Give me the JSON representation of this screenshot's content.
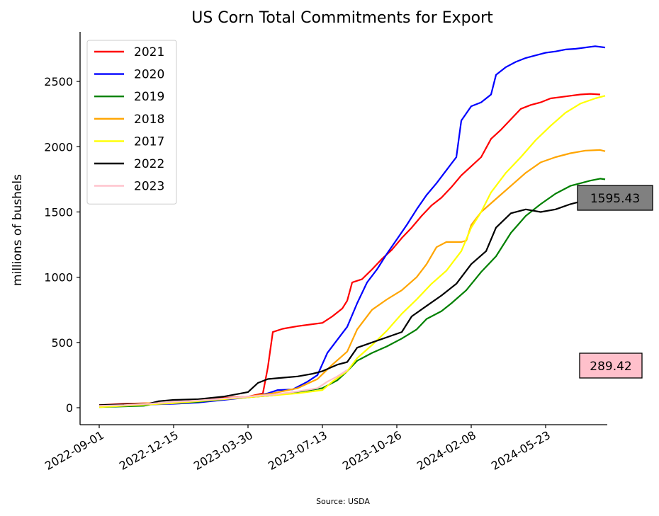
{
  "chart_data": {
    "type": "line",
    "title": "US Corn Total Commitments for Export",
    "ylabel": "millions of bushels",
    "xlabel": "",
    "source": "Source: USDA",
    "ylim": [
      -130,
      2880
    ],
    "xlim": [
      "2022-08-05",
      "2024-08-18"
    ],
    "y_ticks": [
      0,
      500,
      1000,
      1500,
      2000,
      2500
    ],
    "x_ticks": [
      "2022-09-01",
      "2022-12-15",
      "2023-03-30",
      "2023-07-13",
      "2023-10-26",
      "2024-02-08",
      "2024-05-23"
    ],
    "legend_position": "top-left",
    "grid": false,
    "callouts": [
      {
        "label": "1595.43",
        "color": "#808080",
        "series": "2022"
      },
      {
        "label": "289.42",
        "color": "#ffc0cb",
        "series": "2023"
      }
    ],
    "series": [
      {
        "name": "2021",
        "color": "#ff0000",
        "points": [
          [
            "2022-09-01",
            20
          ],
          [
            "2022-10-06",
            30
          ],
          [
            "2022-11-10",
            35
          ],
          [
            "2022-12-15",
            40
          ],
          [
            "2023-01-19",
            55
          ],
          [
            "2023-02-23",
            75
          ],
          [
            "2023-03-30",
            85
          ],
          [
            "2023-04-20",
            110
          ],
          [
            "2023-04-27",
            310
          ],
          [
            "2023-05-04",
            580
          ],
          [
            "2023-05-18",
            605
          ],
          [
            "2023-06-08",
            625
          ],
          [
            "2023-06-29",
            640
          ],
          [
            "2023-07-13",
            650
          ],
          [
            "2023-07-27",
            700
          ],
          [
            "2023-08-10",
            760
          ],
          [
            "2023-08-17",
            820
          ],
          [
            "2023-08-24",
            960
          ],
          [
            "2023-09-07",
            985
          ],
          [
            "2023-09-21",
            1060
          ],
          [
            "2023-10-05",
            1140
          ],
          [
            "2023-10-19",
            1210
          ],
          [
            "2023-11-02",
            1300
          ],
          [
            "2023-11-16",
            1380
          ],
          [
            "2023-11-30",
            1470
          ],
          [
            "2023-12-14",
            1550
          ],
          [
            "2023-12-28",
            1610
          ],
          [
            "2024-01-11",
            1690
          ],
          [
            "2024-01-25",
            1780
          ],
          [
            "2024-02-08",
            1850
          ],
          [
            "2024-02-22",
            1920
          ],
          [
            "2024-03-07",
            2060
          ],
          [
            "2024-03-21",
            2130
          ],
          [
            "2024-04-04",
            2210
          ],
          [
            "2024-04-18",
            2290
          ],
          [
            "2024-05-02",
            2320
          ],
          [
            "2024-05-16",
            2340
          ],
          [
            "2024-05-30",
            2370
          ],
          [
            "2024-06-13",
            2380
          ],
          [
            "2024-06-27",
            2390
          ],
          [
            "2024-07-11",
            2400
          ],
          [
            "2024-07-25",
            2405
          ],
          [
            "2024-08-08",
            2400
          ]
        ]
      },
      {
        "name": "2020",
        "color": "#0000ff",
        "points": [
          [
            "2022-09-01",
            10
          ],
          [
            "2022-10-06",
            20
          ],
          [
            "2022-11-10",
            25
          ],
          [
            "2022-12-15",
            30
          ],
          [
            "2023-01-19",
            40
          ],
          [
            "2023-02-23",
            60
          ],
          [
            "2023-03-30",
            80
          ],
          [
            "2023-04-27",
            110
          ],
          [
            "2023-05-11",
            135
          ],
          [
            "2023-06-01",
            140
          ],
          [
            "2023-06-22",
            200
          ],
          [
            "2023-07-06",
            250
          ],
          [
            "2023-07-20",
            420
          ],
          [
            "2023-08-03",
            520
          ],
          [
            "2023-08-17",
            620
          ],
          [
            "2023-08-31",
            800
          ],
          [
            "2023-09-14",
            960
          ],
          [
            "2023-09-28",
            1060
          ],
          [
            "2023-10-12",
            1180
          ],
          [
            "2023-10-26",
            1290
          ],
          [
            "2023-11-09",
            1400
          ],
          [
            "2023-11-23",
            1520
          ],
          [
            "2023-12-07",
            1630
          ],
          [
            "2023-12-21",
            1720
          ],
          [
            "2024-01-04",
            1820
          ],
          [
            "2024-01-18",
            1920
          ],
          [
            "2024-01-25",
            2200
          ],
          [
            "2024-02-08",
            2310
          ],
          [
            "2024-02-22",
            2340
          ],
          [
            "2024-03-07",
            2400
          ],
          [
            "2024-03-14",
            2550
          ],
          [
            "2024-03-28",
            2610
          ],
          [
            "2024-04-11",
            2650
          ],
          [
            "2024-04-25",
            2680
          ],
          [
            "2024-05-09",
            2700
          ],
          [
            "2024-05-23",
            2720
          ],
          [
            "2024-06-06",
            2730
          ],
          [
            "2024-06-20",
            2745
          ],
          [
            "2024-07-04",
            2750
          ],
          [
            "2024-07-18",
            2760
          ],
          [
            "2024-08-01",
            2770
          ],
          [
            "2024-08-15",
            2760
          ]
        ]
      },
      {
        "name": "2019",
        "color": "#008000",
        "points": [
          [
            "2022-09-01",
            5
          ],
          [
            "2022-10-06",
            10
          ],
          [
            "2022-11-03",
            15
          ],
          [
            "2022-11-17",
            30
          ],
          [
            "2022-12-15",
            35
          ],
          [
            "2023-01-19",
            45
          ],
          [
            "2023-02-23",
            65
          ],
          [
            "2023-03-30",
            80
          ],
          [
            "2023-05-04",
            95
          ],
          [
            "2023-06-08",
            120
          ],
          [
            "2023-07-13",
            150
          ],
          [
            "2023-08-03",
            210
          ],
          [
            "2023-08-17",
            280
          ],
          [
            "2023-08-31",
            360
          ],
          [
            "2023-09-21",
            420
          ],
          [
            "2023-10-12",
            470
          ],
          [
            "2023-11-02",
            530
          ],
          [
            "2023-11-23",
            600
          ],
          [
            "2023-12-07",
            680
          ],
          [
            "2023-12-28",
            740
          ],
          [
            "2024-01-11",
            800
          ],
          [
            "2024-02-01",
            900
          ],
          [
            "2024-02-22",
            1040
          ],
          [
            "2024-03-14",
            1160
          ],
          [
            "2024-04-04",
            1340
          ],
          [
            "2024-04-25",
            1470
          ],
          [
            "2024-05-16",
            1560
          ],
          [
            "2024-06-06",
            1640
          ],
          [
            "2024-06-27",
            1700
          ],
          [
            "2024-07-11",
            1720
          ],
          [
            "2024-07-25",
            1740
          ],
          [
            "2024-08-08",
            1755
          ],
          [
            "2024-08-15",
            1750
          ]
        ]
      },
      {
        "name": "2018",
        "color": "#ffa500",
        "points": [
          [
            "2022-09-01",
            15
          ],
          [
            "2022-10-06",
            25
          ],
          [
            "2022-11-10",
            35
          ],
          [
            "2022-12-15",
            40
          ],
          [
            "2023-01-19",
            55
          ],
          [
            "2023-02-23",
            70
          ],
          [
            "2023-03-30",
            85
          ],
          [
            "2023-05-04",
            110
          ],
          [
            "2023-06-08",
            150
          ],
          [
            "2023-07-06",
            220
          ],
          [
            "2023-07-27",
            330
          ],
          [
            "2023-08-17",
            430
          ],
          [
            "2023-08-31",
            600
          ],
          [
            "2023-09-21",
            750
          ],
          [
            "2023-10-12",
            830
          ],
          [
            "2023-11-02",
            900
          ],
          [
            "2023-11-23",
            1000
          ],
          [
            "2023-12-07",
            1100
          ],
          [
            "2023-12-21",
            1230
          ],
          [
            "2024-01-04",
            1270
          ],
          [
            "2024-01-25",
            1270
          ],
          [
            "2024-02-01",
            1280
          ],
          [
            "2024-02-08",
            1400
          ],
          [
            "2024-02-22",
            1500
          ],
          [
            "2024-03-14",
            1600
          ],
          [
            "2024-04-04",
            1700
          ],
          [
            "2024-04-25",
            1800
          ],
          [
            "2024-05-16",
            1880
          ],
          [
            "2024-06-06",
            1920
          ],
          [
            "2024-06-27",
            1950
          ],
          [
            "2024-07-18",
            1970
          ],
          [
            "2024-08-08",
            1975
          ],
          [
            "2024-08-15",
            1965
          ]
        ]
      },
      {
        "name": "2017",
        "color": "#ffff00",
        "points": [
          [
            "2022-09-01",
            5
          ],
          [
            "2022-10-06",
            15
          ],
          [
            "2022-11-10",
            25
          ],
          [
            "2022-12-15",
            35
          ],
          [
            "2023-01-19",
            50
          ],
          [
            "2023-02-23",
            65
          ],
          [
            "2023-03-30",
            80
          ],
          [
            "2023-05-04",
            95
          ],
          [
            "2023-06-08",
            110
          ],
          [
            "2023-07-13",
            135
          ],
          [
            "2023-07-27",
            200
          ],
          [
            "2023-08-17",
            280
          ],
          [
            "2023-08-31",
            380
          ],
          [
            "2023-09-21",
            480
          ],
          [
            "2023-10-12",
            590
          ],
          [
            "2023-11-02",
            720
          ],
          [
            "2023-11-23",
            830
          ],
          [
            "2023-12-14",
            950
          ],
          [
            "2024-01-04",
            1050
          ],
          [
            "2024-01-25",
            1200
          ],
          [
            "2024-02-08",
            1380
          ],
          [
            "2024-02-22",
            1500
          ],
          [
            "2024-03-07",
            1650
          ],
          [
            "2024-03-28",
            1800
          ],
          [
            "2024-04-18",
            1920
          ],
          [
            "2024-05-09",
            2050
          ],
          [
            "2024-05-30",
            2160
          ],
          [
            "2024-06-20",
            2260
          ],
          [
            "2024-07-11",
            2330
          ],
          [
            "2024-08-01",
            2370
          ],
          [
            "2024-08-15",
            2390
          ]
        ]
      },
      {
        "name": "2022",
        "color": "#000000",
        "points": [
          [
            "2022-09-01",
            20
          ],
          [
            "2022-10-06",
            25
          ],
          [
            "2022-11-10",
            30
          ],
          [
            "2022-11-24",
            50
          ],
          [
            "2022-12-15",
            60
          ],
          [
            "2023-01-19",
            65
          ],
          [
            "2023-02-23",
            85
          ],
          [
            "2023-03-30",
            120
          ],
          [
            "2023-04-13",
            190
          ],
          [
            "2023-04-27",
            220
          ],
          [
            "2023-05-18",
            230
          ],
          [
            "2023-06-08",
            240
          ],
          [
            "2023-06-29",
            260
          ],
          [
            "2023-07-13",
            280
          ],
          [
            "2023-08-03",
            330
          ],
          [
            "2023-08-17",
            350
          ],
          [
            "2023-08-31",
            460
          ],
          [
            "2023-09-21",
            500
          ],
          [
            "2023-10-12",
            540
          ],
          [
            "2023-11-02",
            580
          ],
          [
            "2023-11-16",
            700
          ],
          [
            "2023-12-07",
            780
          ],
          [
            "2023-12-28",
            860
          ],
          [
            "2024-01-18",
            950
          ],
          [
            "2024-02-08",
            1100
          ],
          [
            "2024-02-29",
            1200
          ],
          [
            "2024-03-14",
            1380
          ],
          [
            "2024-04-04",
            1490
          ],
          [
            "2024-04-25",
            1520
          ],
          [
            "2024-05-16",
            1500
          ],
          [
            "2024-06-06",
            1520
          ],
          [
            "2024-06-27",
            1560
          ],
          [
            "2024-07-18",
            1590
          ],
          [
            "2024-08-01",
            1595
          ]
        ]
      },
      {
        "name": "2023",
        "color": "#ffc0cb",
        "points": [
          [
            "2022-09-01",
            15
          ],
          [
            "2022-10-06",
            20
          ],
          [
            "2022-11-10",
            30
          ],
          [
            "2022-12-15",
            45
          ],
          [
            "2023-01-19",
            55
          ],
          [
            "2023-02-23",
            70
          ],
          [
            "2023-03-30",
            85
          ],
          [
            "2023-05-04",
            100
          ],
          [
            "2023-06-08",
            125
          ],
          [
            "2023-07-06",
            150
          ],
          [
            "2023-07-20",
            200
          ],
          [
            "2023-08-03",
            240
          ],
          [
            "2023-08-17",
            289
          ]
        ]
      }
    ]
  }
}
